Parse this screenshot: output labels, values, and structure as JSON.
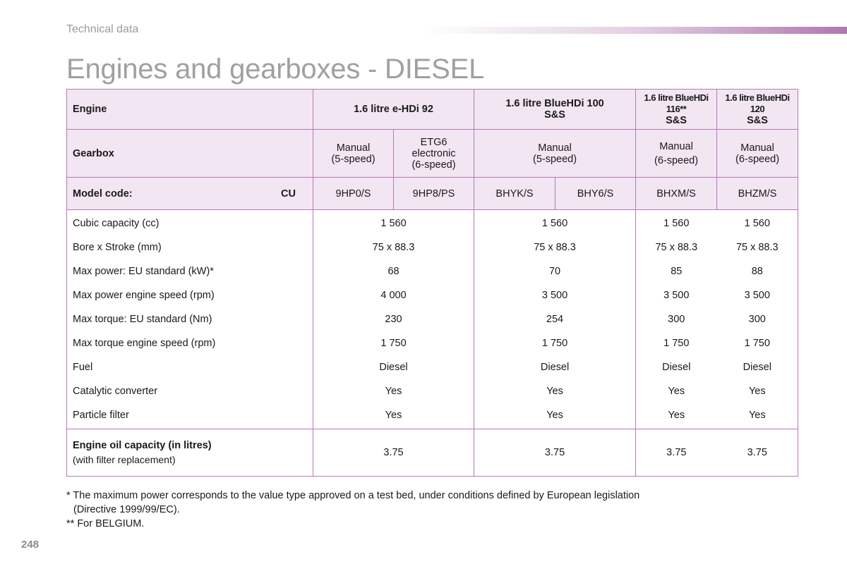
{
  "header": {
    "section_label": "Technical data",
    "page_title": "Engines and gearboxes - DIESEL",
    "accent_color": "#b077b0"
  },
  "table": {
    "engine_label": "Engine",
    "engines": [
      {
        "line1": "1.6 litre e-HDi 92",
        "line2": ""
      },
      {
        "line1": "1.6 litre BlueHDi 100",
        "line2": "S&S"
      },
      {
        "line1": "1.6 litre BlueHDi",
        "line2": "116**",
        "line3": "S&S"
      },
      {
        "line1": "1.6 litre BlueHDi",
        "line2": "120",
        "line3": "S&S"
      }
    ],
    "gearbox_label": "Gearbox",
    "gearboxes": [
      {
        "line1": "Manual",
        "line2": "(5-speed)",
        "line3": ""
      },
      {
        "line1": "ETG6",
        "line2": "electronic",
        "line3": "(6-speed)"
      },
      {
        "line1": "Manual",
        "line2": "(5-speed)",
        "line3": ""
      },
      {
        "line1": "Manual",
        "line2": "(6-speed)",
        "line3": ""
      },
      {
        "line1": "Manual",
        "line2": "(6-speed)",
        "line3": ""
      }
    ],
    "model_code_label": "Model code:",
    "model_code_suffix": "CU",
    "model_codes": [
      "9HP0/S",
      "9HP8/PS",
      "BHYK/S",
      "BHY6/S",
      "BHXM/S",
      "BHZM/S"
    ],
    "rows": [
      {
        "label": "Cubic capacity (cc)",
        "values": [
          "1 560",
          "1 560",
          "1 560",
          "1 560"
        ]
      },
      {
        "label": "Bore x Stroke (mm)",
        "values": [
          "75 x 88.3",
          "75 x 88.3",
          "75 x 88.3",
          "75 x 88.3"
        ]
      },
      {
        "label": "Max power: EU standard (kW)*",
        "values": [
          "68",
          "70",
          "85",
          "88"
        ]
      },
      {
        "label": "Max power engine speed (rpm)",
        "values": [
          "4 000",
          "3 500",
          "3 500",
          "3 500"
        ]
      },
      {
        "label": "Max torque: EU standard (Nm)",
        "values": [
          "230",
          "254",
          "300",
          "300"
        ]
      },
      {
        "label": "Max torque engine speed (rpm)",
        "values": [
          "1 750",
          "1 750",
          "1 750",
          "1 750"
        ]
      },
      {
        "label": "Fuel",
        "values": [
          "Diesel",
          "Diesel",
          "Diesel",
          "Diesel"
        ]
      },
      {
        "label": "Catalytic converter",
        "values": [
          "Yes",
          "Yes",
          "Yes",
          "Yes"
        ]
      },
      {
        "label": "Particle filter",
        "values": [
          "Yes",
          "Yes",
          "Yes",
          "Yes"
        ]
      }
    ],
    "oil": {
      "label": "Engine oil capacity (in litres)",
      "note": "(with filter replacement)",
      "values": [
        "3.75",
        "3.75",
        "3.75",
        "3.75"
      ]
    }
  },
  "footnotes": {
    "note1_line1": "* The maximum power corresponds to the value type approved on a test bed, under conditions defined by European legislation",
    "note1_line2": "(Directive 1999/99/EC).",
    "note2": "** For BELGIUM."
  },
  "page_number": "248"
}
